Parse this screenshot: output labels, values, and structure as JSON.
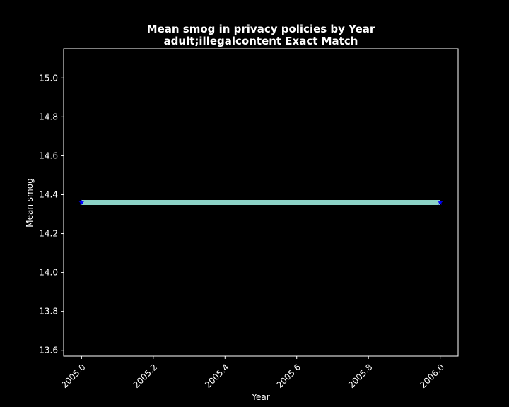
{
  "chart_data": {
    "type": "line",
    "title": "Mean smog in privacy policies by Year",
    "subtitle": "adult;illegalcontent Exact Match",
    "xlabel": "Year",
    "ylabel": "Mean smog",
    "xlim": [
      2004.95,
      2006.05
    ],
    "ylim": [
      13.57,
      15.15
    ],
    "x_ticks": [
      2005.0,
      2005.2,
      2005.4,
      2005.6,
      2005.8,
      2006.0
    ],
    "x_tick_labels": [
      "2005.0",
      "2005.2",
      "2005.4",
      "2005.6",
      "2005.8",
      "2006.0"
    ],
    "y_ticks": [
      13.6,
      13.8,
      14.0,
      14.2,
      14.4,
      14.6,
      14.8,
      15.0
    ],
    "y_tick_labels": [
      "13.6",
      "13.8",
      "14.0",
      "14.2",
      "14.4",
      "14.6",
      "14.8",
      "15.0"
    ],
    "grid": false,
    "series": [
      {
        "x": [
          2005.0,
          2006.0
        ],
        "y": [
          14.36,
          14.36
        ],
        "line_color": "#8dd3c7",
        "marker_color": "#0000ff",
        "marker": "star"
      }
    ]
  },
  "colors": {
    "background": "#000000",
    "foreground": "#ffffff"
  }
}
